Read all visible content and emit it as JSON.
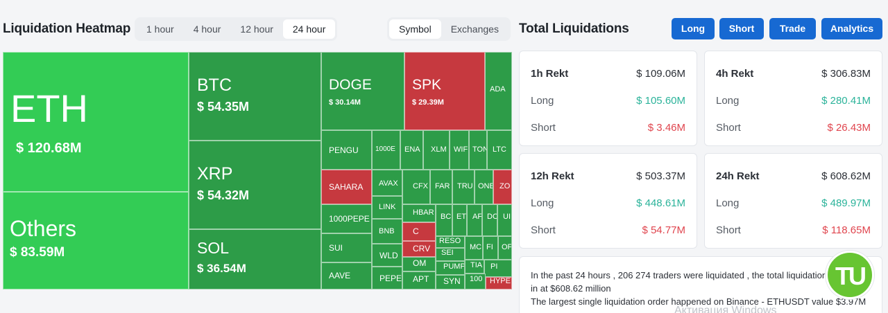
{
  "heatmap_title": "Liquidation Heatmap",
  "time_options": [
    "1 hour",
    "4 hour",
    "12 hour",
    "24 hour"
  ],
  "view_options": [
    "Symbol",
    "Exchanges"
  ],
  "total_title": "Total Liquidations",
  "buttons": [
    "Long",
    "Short",
    "Trade",
    "Analytics"
  ],
  "cells": [
    {
      "sym": "ETH",
      "val": "$ 120.68M",
      "color": "g1"
    },
    {
      "sym": "Others",
      "val": "$ 83.59M",
      "color": "g1"
    },
    {
      "sym": "BTC",
      "val": "$ 54.35M",
      "color": "g2"
    },
    {
      "sym": "XRP",
      "val": "$ 54.32M",
      "color": "g2"
    },
    {
      "sym": "SOL",
      "val": "$ 36.54M",
      "color": "g2"
    },
    {
      "sym": "DOGE",
      "val": "$ 30.14M",
      "color": "g2"
    },
    {
      "sym": "SPK",
      "val": "$ 29.39M",
      "color": "r1"
    },
    {
      "sym": "ADA",
      "val": "",
      "color": "g2"
    },
    {
      "sym": "PENGU",
      "val": "",
      "color": "g2"
    },
    {
      "sym": "1000E",
      "val": "",
      "color": "g2"
    },
    {
      "sym": "ENA",
      "val": "",
      "color": "g2"
    },
    {
      "sym": "XLM",
      "val": "",
      "color": "g2"
    },
    {
      "sym": "WIF",
      "val": "",
      "color": "g2"
    },
    {
      "sym": "TON",
      "val": "",
      "color": "g2"
    },
    {
      "sym": "LTC",
      "val": "",
      "color": "g2"
    },
    {
      "sym": "SAHARA",
      "val": "",
      "color": "r1"
    },
    {
      "sym": "AVAX",
      "val": "",
      "color": "g2"
    },
    {
      "sym": "CFX",
      "val": "",
      "color": "g2"
    },
    {
      "sym": "FAR",
      "val": "",
      "color": "g2"
    },
    {
      "sym": "TRU",
      "val": "",
      "color": "g2"
    },
    {
      "sym": "ONE",
      "val": "",
      "color": "g2"
    },
    {
      "sym": "ZO",
      "val": "",
      "color": "r1"
    },
    {
      "sym": "1000PEPE",
      "val": "",
      "color": "g2"
    },
    {
      "sym": "LINK",
      "val": "",
      "color": "g2"
    },
    {
      "sym": "HBAR",
      "val": "",
      "color": "g2"
    },
    {
      "sym": "BC",
      "val": "",
      "color": "g2"
    },
    {
      "sym": "ET",
      "val": "",
      "color": "g2"
    },
    {
      "sym": "AF",
      "val": "",
      "color": "g2"
    },
    {
      "sym": "DC",
      "val": "",
      "color": "g2"
    },
    {
      "sym": "UI",
      "val": "",
      "color": "g2"
    },
    {
      "sym": "BNB",
      "val": "",
      "color": "g2"
    },
    {
      "sym": "C",
      "val": "",
      "color": "r1"
    },
    {
      "sym": "RESO",
      "val": "",
      "color": "g2"
    },
    {
      "sym": "MC",
      "val": "",
      "color": "g2"
    },
    {
      "sym": "FI",
      "val": "",
      "color": "g2"
    },
    {
      "sym": "OF",
      "val": "",
      "color": "g2"
    },
    {
      "sym": "SUI",
      "val": "",
      "color": "g2"
    },
    {
      "sym": "CRV",
      "val": "",
      "color": "r1"
    },
    {
      "sym": "SEI",
      "val": "",
      "color": "g2"
    },
    {
      "sym": "WLD",
      "val": "",
      "color": "g2"
    },
    {
      "sym": "PUMP",
      "val": "",
      "color": "g2"
    },
    {
      "sym": "TIA",
      "val": "",
      "color": "g2"
    },
    {
      "sym": "PI",
      "val": "",
      "color": "g2"
    },
    {
      "sym": "OM",
      "val": "",
      "color": "g2"
    },
    {
      "sym": "AAVE",
      "val": "",
      "color": "g2"
    },
    {
      "sym": "PEPE",
      "val": "",
      "color": "g2"
    },
    {
      "sym": "APT",
      "val": "",
      "color": "g2"
    },
    {
      "sym": "SYN",
      "val": "",
      "color": "g2"
    },
    {
      "sym": "100",
      "val": "",
      "color": "g2"
    },
    {
      "sym": "HYPE",
      "val": "",
      "color": "r1"
    }
  ],
  "stats": [
    {
      "period": "1h Rekt",
      "total": "$ 109.06M",
      "long_label": "Long",
      "long": "$ 105.60M",
      "short_label": "Short",
      "short": "$ 3.46M"
    },
    {
      "period": "4h Rekt",
      "total": "$ 306.83M",
      "long_label": "Long",
      "long": "$ 280.41M",
      "short_label": "Short",
      "short": "$ 26.43M"
    },
    {
      "period": "12h Rekt",
      "total": "$ 503.37M",
      "long_label": "Long",
      "long": "$ 448.61M",
      "short_label": "Short",
      "short": "$ 54.77M"
    },
    {
      "period": "24h Rekt",
      "total": "$ 608.62M",
      "long_label": "Long",
      "long": "$ 489.97M",
      "short_label": "Short",
      "short": "$ 118.65M"
    }
  ],
  "info": {
    "line1": "In the past 24 hours , 206 274 traders were liquidated , the total liquidation comes",
    "line2": "in at $608.62 million",
    "line3": "The largest single liquidation order happened on Binance - ETHUSDT value $3.97M"
  },
  "logo_text": "TU",
  "watermark": "Активация Windows"
}
